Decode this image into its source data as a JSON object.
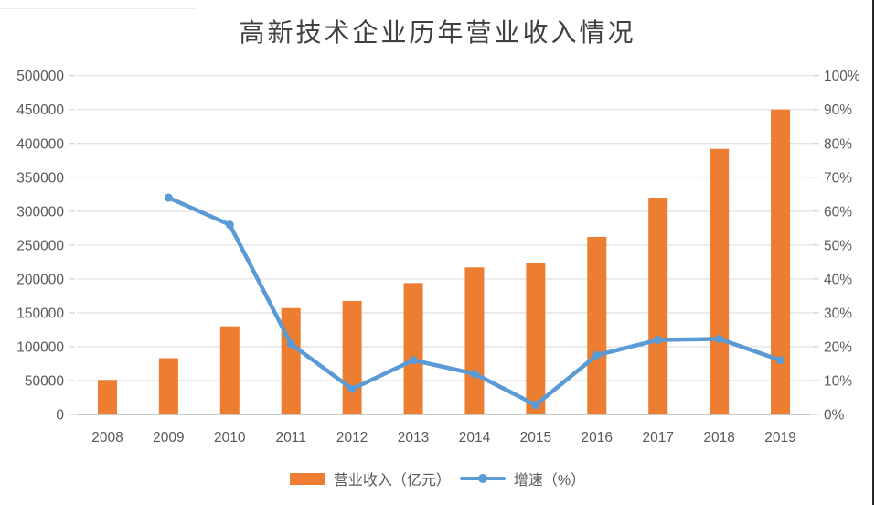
{
  "page": {
    "background": "#FFFFFF"
  },
  "chart_data": {
    "type": "combo",
    "title": "高新技术企业历年营业收入情况",
    "categories": [
      "2008",
      "2009",
      "2010",
      "2011",
      "2012",
      "2013",
      "2014",
      "2015",
      "2016",
      "2017",
      "2018",
      "2019"
    ],
    "series": [
      {
        "name": "营业收入（亿元）",
        "type": "bar",
        "axis": "left",
        "color": "#ED7D31",
        "values": [
          51000,
          83000,
          130000,
          157000,
          167500,
          194000,
          217000,
          223000,
          262000,
          320000,
          392000,
          450000
        ]
      },
      {
        "name": "增速（%）",
        "type": "line",
        "axis": "right",
        "color": "#5B9BD5",
        "values": [
          null,
          64,
          56,
          20.8,
          7.5,
          16,
          12,
          2.8,
          17.5,
          22,
          22.3,
          16
        ]
      }
    ],
    "left_axis": {
      "min": 0,
      "max": 500000,
      "step": 50000,
      "tick_labels": [
        "0",
        "50000",
        "100000",
        "150000",
        "200000",
        "250000",
        "300000",
        "350000",
        "400000",
        "450000",
        "500000"
      ]
    },
    "right_axis": {
      "min": 0,
      "max": 100,
      "step": 10,
      "unit": "%",
      "tick_labels": [
        "0%",
        "10%",
        "20%",
        "30%",
        "40%",
        "50%",
        "60%",
        "70%",
        "80%",
        "90%",
        "100%"
      ]
    },
    "grid": true,
    "legend_position": "bottom",
    "colors": {
      "axis_text": "#595959",
      "title_text": "#404040",
      "gridline": "#D9D9D9",
      "axis_line": "#C9C9C9",
      "border_line": "#262626"
    }
  },
  "legend": {
    "items": [
      {
        "label": "营业收入（亿元）",
        "swatch": "bar",
        "color": "#ED7D31"
      },
      {
        "label": "增速（%）",
        "swatch": "line-marker",
        "color": "#5B9BD5"
      }
    ]
  }
}
